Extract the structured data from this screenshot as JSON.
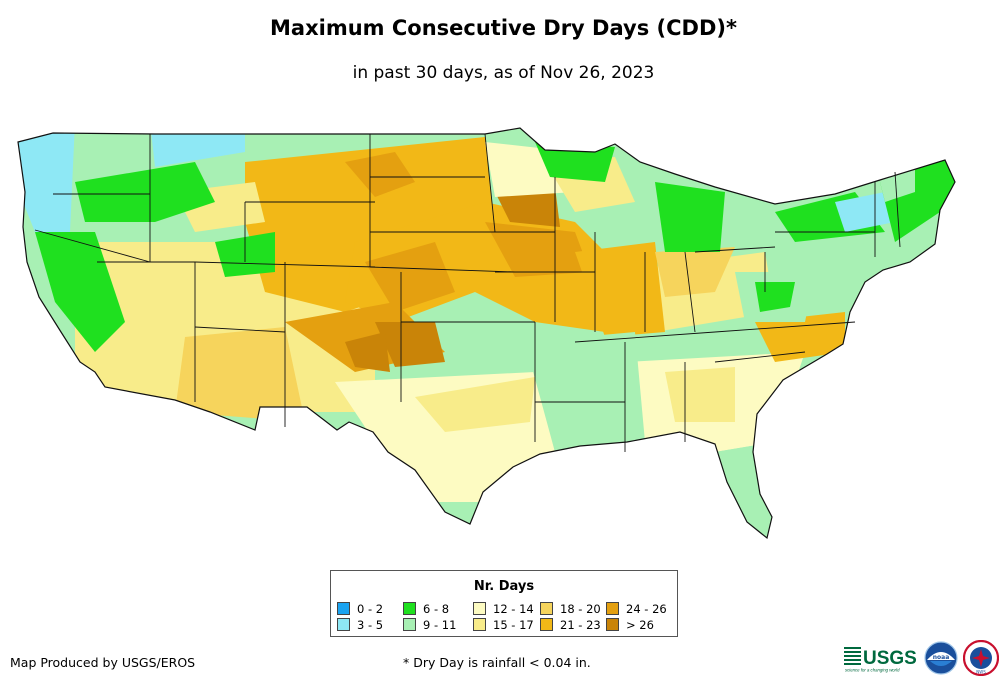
{
  "title": "Maximum Consecutive Dry Days (CDD)*",
  "subtitle": "in past 30 days, as of Nov 26, 2023",
  "legend": {
    "title": "Nr. Days",
    "items": [
      {
        "label": "0 - 2",
        "color": "#1aa3f0"
      },
      {
        "label": "3 - 5",
        "color": "#8ee8f5"
      },
      {
        "label": "6 - 8",
        "color": "#1fe01f"
      },
      {
        "label": "9 - 11",
        "color": "#a8f0b4"
      },
      {
        "label": "12 - 14",
        "color": "#fdfbc2"
      },
      {
        "label": "15 - 17",
        "color": "#f8ec8a"
      },
      {
        "label": "18 - 20",
        "color": "#f6d45c"
      },
      {
        "label": "21 - 23",
        "color": "#f2b817"
      },
      {
        "label": "24 - 26",
        "color": "#e4a010"
      },
      {
        "label": "> 26",
        "color": "#c98408"
      }
    ]
  },
  "footer": {
    "credit": "Map Produced by USGS/EROS",
    "note": "* Dry Day is rainfall < 0.04 in."
  },
  "logos": {
    "usgs": "USGS",
    "usgs_tagline": "science for a changing world",
    "noaa": "noaa",
    "nws": "NWS"
  },
  "map": {
    "region": "Contiguous United States",
    "regions": [
      {
        "name": "pacific-northwest-coast",
        "category": "3 - 5"
      },
      {
        "name": "west-coast",
        "category": "6 - 8"
      },
      {
        "name": "northern-rockies",
        "category": "6 - 8"
      },
      {
        "name": "northern-plains",
        "category": "21 - 23"
      },
      {
        "name": "central-plains",
        "category": "24 - 26"
      },
      {
        "name": "southwest",
        "category": "18 - 20"
      },
      {
        "name": "texas",
        "category": "12 - 14"
      },
      {
        "name": "lower-mississippi-valley",
        "category": "9 - 11"
      },
      {
        "name": "southeast",
        "category": "12 - 14"
      },
      {
        "name": "great-lakes",
        "category": "6 - 8"
      },
      {
        "name": "northeast",
        "category": "6 - 8"
      },
      {
        "name": "florida",
        "category": "9 - 11"
      }
    ]
  }
}
